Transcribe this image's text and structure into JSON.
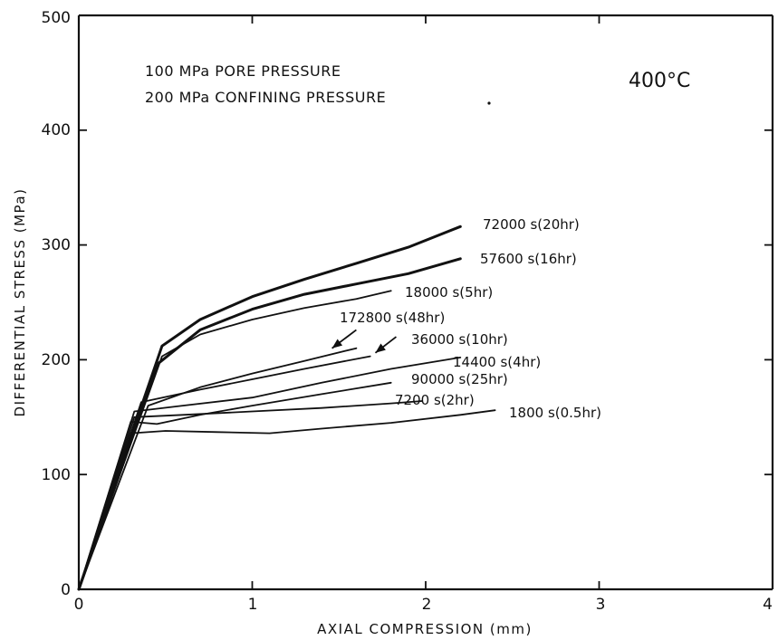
{
  "chart_data": {
    "type": "line",
    "xlabel": "AXIAL COMPRESSION (mm)",
    "ylabel": "DIFFERENTIAL STRESS (MPa)",
    "xlim": [
      0,
      4
    ],
    "ylim": [
      0,
      500
    ],
    "x_ticks": [
      "0",
      "1",
      "2",
      "3",
      "4"
    ],
    "y_ticks": [
      "0",
      "100",
      "200",
      "300",
      "400",
      "500"
    ],
    "annotations": {
      "pore_pressure": "100 MPa PORE PRESSURE",
      "confining_pressure": "200 MPa CONFINING PRESSURE",
      "temperature": "400°C"
    },
    "series": [
      {
        "name": "72000 s(20hr)",
        "heavy": true,
        "points": [
          [
            0,
            0
          ],
          [
            0.48,
            212
          ],
          [
            0.7,
            235
          ],
          [
            1.0,
            255
          ],
          [
            1.3,
            270
          ],
          [
            1.6,
            284
          ],
          [
            1.9,
            298
          ],
          [
            2.2,
            316
          ]
        ]
      },
      {
        "name": "57600 s(16hr)",
        "heavy": true,
        "points": [
          [
            0,
            0
          ],
          [
            0.46,
            197
          ],
          [
            0.7,
            226
          ],
          [
            1.0,
            244
          ],
          [
            1.3,
            257
          ],
          [
            1.6,
            266
          ],
          [
            1.9,
            275
          ],
          [
            2.2,
            288
          ]
        ]
      },
      {
        "name": "18000 s(5hr)",
        "heavy": false,
        "points": [
          [
            0,
            0
          ],
          [
            0.48,
            203
          ],
          [
            0.7,
            222
          ],
          [
            1.0,
            235
          ],
          [
            1.3,
            245
          ],
          [
            1.6,
            253
          ],
          [
            1.8,
            260
          ]
        ]
      },
      {
        "name": "172800 s(48hr)",
        "heavy": false,
        "points": [
          [
            0,
            0
          ],
          [
            0.4,
            160
          ],
          [
            0.7,
            176
          ],
          [
            1.0,
            188
          ],
          [
            1.3,
            199
          ],
          [
            1.6,
            210
          ]
        ]
      },
      {
        "name": "36000 s(10hr)",
        "heavy": false,
        "points": [
          [
            0,
            0
          ],
          [
            0.36,
            163
          ],
          [
            0.7,
            174
          ],
          [
            1.0,
            183
          ],
          [
            1.3,
            192
          ],
          [
            1.68,
            203
          ]
        ]
      },
      {
        "name": "14400 s(4hr)",
        "heavy": false,
        "points": [
          [
            0,
            0
          ],
          [
            0.32,
            155
          ],
          [
            0.6,
            160
          ],
          [
            1.0,
            167
          ],
          [
            1.4,
            180
          ],
          [
            1.8,
            192
          ],
          [
            2.2,
            202
          ]
        ]
      },
      {
        "name": "90000 s(25hr)",
        "heavy": false,
        "points": [
          [
            0,
            0
          ],
          [
            0.3,
            146
          ],
          [
            0.45,
            144
          ],
          [
            0.7,
            152
          ],
          [
            1.0,
            160
          ],
          [
            1.4,
            170
          ],
          [
            1.8,
            180
          ]
        ]
      },
      {
        "name": "7200 s(2hr)",
        "heavy": false,
        "points": [
          [
            0,
            0
          ],
          [
            0.32,
            150
          ],
          [
            0.6,
            152
          ],
          [
            1.0,
            155
          ],
          [
            1.4,
            158
          ],
          [
            1.8,
            162
          ],
          [
            1.98,
            164
          ]
        ]
      },
      {
        "name": "1800 s(0.5hr)",
        "heavy": false,
        "points": [
          [
            0,
            0
          ],
          [
            0.3,
            136
          ],
          [
            0.5,
            138
          ],
          [
            0.8,
            137
          ],
          [
            1.1,
            136
          ],
          [
            1.4,
            140
          ],
          [
            1.8,
            145
          ],
          [
            2.2,
            152
          ],
          [
            2.4,
            156
          ]
        ]
      }
    ],
    "arrows": [
      {
        "label_for": "172800 s(48hr)",
        "from": [
          1.6,
          226
        ],
        "to": [
          1.46,
          210
        ]
      },
      {
        "label_for": "36000 s(10hr)",
        "from": [
          1.83,
          220
        ],
        "to": [
          1.71,
          206
        ]
      }
    ]
  },
  "display": {
    "x_ticks": [
      "0",
      "1",
      "2",
      "3",
      "4"
    ],
    "y_ticks": [
      "0",
      "100",
      "200",
      "300",
      "400",
      "500"
    ],
    "xlabel": "AXIAL COMPRESSION  (mm)",
    "ylabel": "DIFFERENTIAL STRESS  (MPa)",
    "pore": "100 MPa PORE PRESSURE",
    "confining": "200 MPa CONFINING PRESSURE",
    "temp": "400°C",
    "labels": [
      "72000 s(20hr)",
      "57600 s(16hr)",
      "18000 s(5hr)",
      "172800 s(48hr)",
      "36000 s(10hr)",
      "14400 s(4hr)",
      "90000 s(25hr)",
      "7200 s(2hr)",
      "1800 s(0.5hr)"
    ]
  }
}
